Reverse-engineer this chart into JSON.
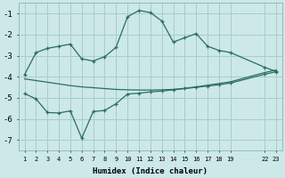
{
  "xlabel": "Humidex (Indice chaleur)",
  "background_color": "#cce8e8",
  "grid_color": "#aacccc",
  "line_color": "#2a6e62",
  "ylim": [
    -7.5,
    -0.5
  ],
  "yticks": [
    -7,
    -6,
    -5,
    -4,
    -3,
    -2,
    -1
  ],
  "xtick_positions": [
    1,
    2,
    3,
    4,
    5,
    6,
    7,
    8,
    9,
    10,
    11,
    12,
    13,
    14,
    15,
    16,
    17,
    18,
    19,
    22,
    23
  ],
  "xtick_labels": [
    "1",
    "2",
    "3",
    "4",
    "5",
    "6",
    "7",
    "8",
    "9",
    "10",
    "11",
    "12",
    "13",
    "14",
    "15",
    "16",
    "17",
    "18",
    "19",
    "22",
    "23"
  ],
  "xlim": [
    0.5,
    23.5
  ],
  "line1_x": [
    1,
    2,
    3,
    4,
    5,
    6,
    7,
    8,
    9,
    10,
    11,
    12,
    13,
    14,
    15,
    16,
    17,
    18,
    19,
    22,
    23
  ],
  "line1_y": [
    -3.9,
    -2.85,
    -2.65,
    -2.55,
    -2.45,
    -3.15,
    -3.25,
    -3.05,
    -2.6,
    -1.15,
    -0.85,
    -0.95,
    -1.35,
    -2.35,
    -2.15,
    -1.95,
    -2.55,
    -2.75,
    -2.85,
    -3.55,
    -3.75
  ],
  "line2_x": [
    1,
    2,
    3,
    4,
    5,
    6,
    7,
    8,
    9,
    10,
    11,
    12,
    13,
    14,
    15,
    16,
    17,
    18,
    19,
    22,
    23
  ],
  "line2_y": [
    -4.1,
    -4.18,
    -4.26,
    -4.34,
    -4.42,
    -4.48,
    -4.52,
    -4.56,
    -4.6,
    -4.62,
    -4.63,
    -4.63,
    -4.62,
    -4.6,
    -4.55,
    -4.48,
    -4.4,
    -4.32,
    -4.24,
    -3.8,
    -3.68
  ],
  "line3_x": [
    1,
    2,
    3,
    4,
    5,
    6,
    7,
    8,
    9,
    10,
    11,
    12,
    13,
    14,
    15,
    16,
    17,
    18,
    19,
    22,
    23
  ],
  "line3_y": [
    -4.8,
    -5.05,
    -5.7,
    -5.72,
    -5.62,
    -6.92,
    -5.65,
    -5.6,
    -5.28,
    -4.82,
    -4.78,
    -4.72,
    -4.68,
    -4.62,
    -4.56,
    -4.5,
    -4.44,
    -4.38,
    -4.3,
    -3.88,
    -3.76
  ]
}
